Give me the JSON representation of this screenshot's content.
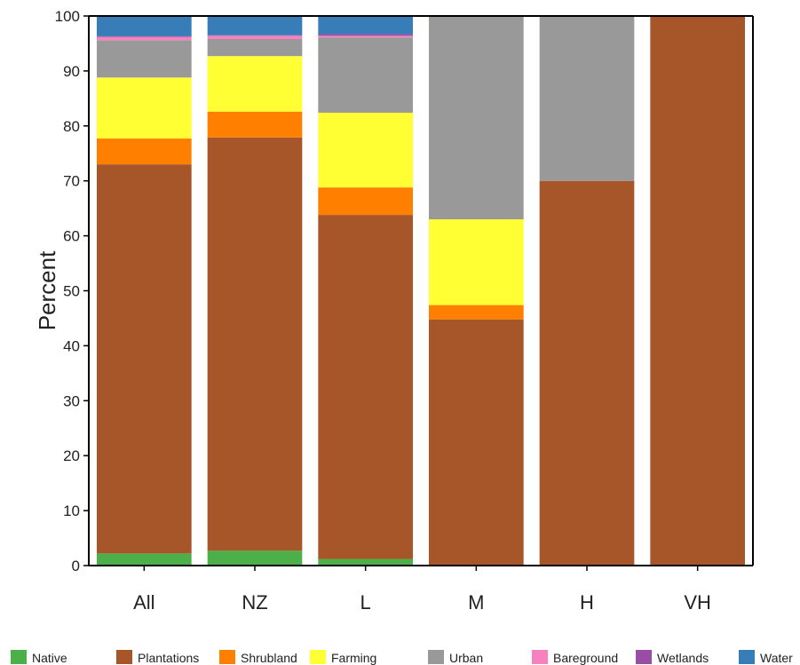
{
  "chart_data": {
    "type": "bar",
    "stacked": true,
    "ylabel": "Percent",
    "xlabel": "",
    "ylim": [
      0,
      100
    ],
    "yticks": [
      0,
      10,
      20,
      30,
      40,
      50,
      60,
      70,
      80,
      90,
      100
    ],
    "categories": [
      "All",
      "NZ",
      "L",
      "M",
      "H",
      "VH"
    ],
    "grid": false,
    "legend_position": "bottom",
    "series": [
      {
        "name": "Native",
        "color": "#4daf4a",
        "values": [
          2.2,
          2.7,
          1.2,
          0,
          0,
          0
        ]
      },
      {
        "name": "Plantations",
        "color": "#a65628",
        "values": [
          70.8,
          75.2,
          62.6,
          44.8,
          70.0,
          100
        ]
      },
      {
        "name": "Shrubland",
        "color": "#ff7f00",
        "values": [
          4.7,
          4.7,
          5.0,
          2.6,
          0,
          0
        ]
      },
      {
        "name": "Farming",
        "color": "#ffff33",
        "values": [
          11.1,
          10.1,
          13.6,
          15.6,
          0,
          0
        ]
      },
      {
        "name": "Urban",
        "color": "#999999",
        "values": [
          6.8,
          3.1,
          13.7,
          37.0,
          30.0,
          0
        ]
      },
      {
        "name": "Bareground",
        "color": "#f781bf",
        "values": [
          0.6,
          0.6,
          0.3,
          0,
          0,
          0
        ]
      },
      {
        "name": "Wetlands",
        "color": "#984ea3",
        "values": [
          0.1,
          0.1,
          0.3,
          0,
          0,
          0
        ]
      },
      {
        "name": "Water",
        "color": "#377eb8",
        "values": [
          3.7,
          3.5,
          3.3,
          0,
          0,
          0
        ]
      }
    ]
  }
}
